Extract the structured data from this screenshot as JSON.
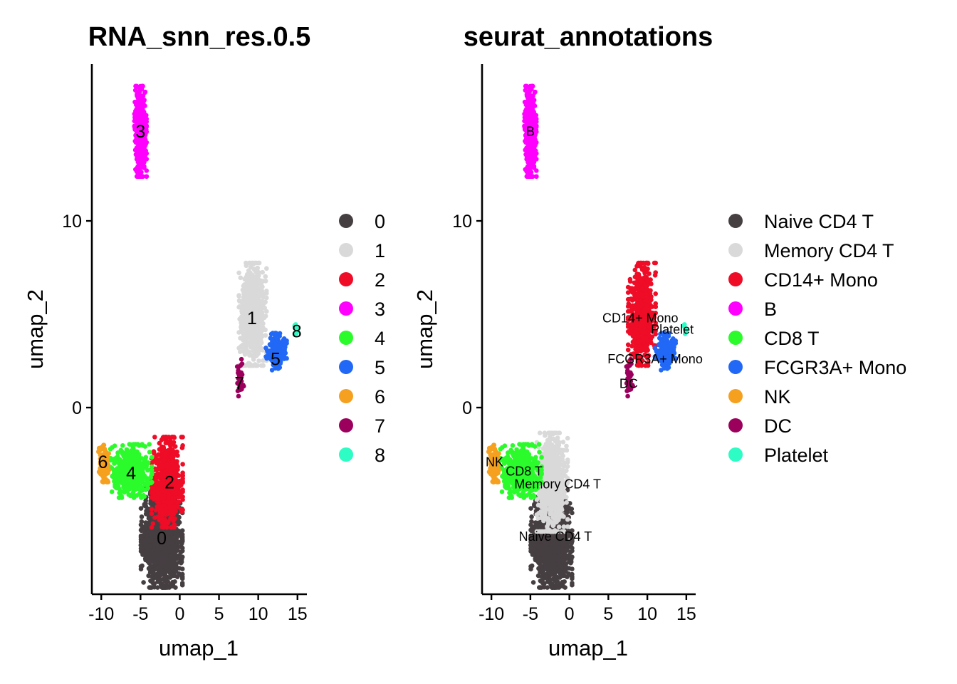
{
  "chart_data": [
    {
      "type": "scatter",
      "title": "RNA_snn_res.0.5",
      "xlabel": "umap_1",
      "ylabel": "umap_2",
      "xlim": [
        -11.2,
        16.2
      ],
      "ylim": [
        -10,
        18.4
      ],
      "xticks": [
        -10,
        -5,
        0,
        5,
        10,
        15
      ],
      "xtick_labels": [
        "-10",
        "-5",
        "0",
        "5",
        "10",
        "15"
      ],
      "yticks": [
        0,
        10
      ],
      "ytick_labels": [
        "0",
        "10"
      ],
      "grid": false,
      "legend_position": "right",
      "legend": [
        {
          "label": "0",
          "color": "#463F42"
        },
        {
          "label": "1",
          "color": "#D9D9D9"
        },
        {
          "label": "2",
          "color": "#EE0C27"
        },
        {
          "label": "3",
          "color": "#FF00FF"
        },
        {
          "label": "4",
          "color": "#2BFB2B"
        },
        {
          "label": "5",
          "color": "#2268F6"
        },
        {
          "label": "6",
          "color": "#F5A01F"
        },
        {
          "label": "7",
          "color": "#9C005D"
        },
        {
          "label": "8",
          "color": "#2DFCC4"
        }
      ],
      "label_size": 25,
      "clusters": [
        {
          "label": "0",
          "color": "#463F42",
          "center": [
            -2.3,
            -7.0
          ],
          "label_pos": [
            -2.3,
            -7.0
          ],
          "sx": 1.2,
          "sy": 1.2,
          "n": 1300
        },
        {
          "label": "1",
          "color": "#D9D9D9",
          "center": [
            9.3,
            5.0
          ],
          "label_pos": [
            9.2,
            4.8
          ],
          "sx": 0.8,
          "sy": 1.25,
          "n": 650
        },
        {
          "label": "2",
          "color": "#EE0C27",
          "center": [
            -1.6,
            -4.0
          ],
          "label_pos": [
            -1.3,
            -4.0
          ],
          "sx": 0.9,
          "sy": 1.1,
          "n": 700
        },
        {
          "label": "3",
          "color": "#FF00FF",
          "center": [
            -5.0,
            14.8
          ],
          "label_pos": [
            -5.0,
            14.8
          ],
          "sx": 0.35,
          "sy": 1.1,
          "n": 500
        },
        {
          "label": "4",
          "color": "#2BFB2B",
          "center": [
            -6.2,
            -3.4
          ],
          "label_pos": [
            -6.2,
            -3.5
          ],
          "sx": 1.2,
          "sy": 0.65,
          "n": 450
        },
        {
          "label": "5",
          "color": "#2268F6",
          "center": [
            12.3,
            3.0
          ],
          "label_pos": [
            12.2,
            2.6
          ],
          "sx": 0.6,
          "sy": 0.45,
          "n": 180
        },
        {
          "label": "6",
          "color": "#F5A01F",
          "center": [
            -9.7,
            -3.0
          ],
          "label_pos": [
            -9.8,
            -2.9
          ],
          "sx": 0.3,
          "sy": 0.45,
          "n": 140
        },
        {
          "label": "7",
          "color": "#9C005D",
          "center": [
            7.7,
            1.6
          ],
          "label_pos": [
            7.6,
            1.3
          ],
          "sx": 0.2,
          "sy": 0.45,
          "n": 30
        },
        {
          "label": "8",
          "color": "#2DFCC4",
          "center": [
            14.9,
            4.2
          ],
          "label_pos": [
            14.9,
            4.1
          ],
          "sx": 0.12,
          "sy": 0.12,
          "n": 8
        }
      ]
    },
    {
      "type": "scatter",
      "title": "seurat_annotations",
      "xlabel": "umap_1",
      "ylabel": "umap_2",
      "xlim": [
        -11.2,
        16.2
      ],
      "ylim": [
        -10,
        18.4
      ],
      "xticks": [
        -10,
        -5,
        0,
        5,
        10,
        15
      ],
      "xtick_labels": [
        "-10",
        "-5",
        "0",
        "5",
        "10",
        "15"
      ],
      "yticks": [
        0,
        10
      ],
      "ytick_labels": [
        "0",
        "10"
      ],
      "grid": false,
      "legend_position": "right",
      "legend": [
        {
          "label": "Naive CD4 T",
          "color": "#463F42"
        },
        {
          "label": "Memory CD4 T",
          "color": "#D9D9D9"
        },
        {
          "label": "CD14+ Mono",
          "color": "#EE0C27"
        },
        {
          "label": "B",
          "color": "#FF00FF"
        },
        {
          "label": "CD8 T",
          "color": "#2BFB2B"
        },
        {
          "label": "FCGR3A+ Mono",
          "color": "#2268F6"
        },
        {
          "label": "NK",
          "color": "#F5A01F"
        },
        {
          "label": "DC",
          "color": "#9C005D"
        },
        {
          "label": "Platelet",
          "color": "#2DFCC4"
        }
      ],
      "label_size": 18,
      "clusters": [
        {
          "label": "Naive CD4 T",
          "color": "#463F42",
          "center": [
            -2.3,
            -7.0
          ],
          "label_pos": [
            -1.8,
            -6.9
          ],
          "sx": 1.2,
          "sy": 1.2,
          "n": 1300
        },
        {
          "label": "Memory CD4 T",
          "color": "#D9D9D9",
          "center": [
            -2.2,
            -4.0
          ],
          "label_pos": [
            -1.5,
            -4.1
          ],
          "sx": 0.9,
          "sy": 1.2,
          "n": 700
        },
        {
          "label": "CD14+ Mono",
          "color": "#EE0C27",
          "center": [
            9.3,
            5.0
          ],
          "label_pos": [
            9.1,
            4.8
          ],
          "sx": 0.8,
          "sy": 1.25,
          "n": 650
        },
        {
          "label": "B",
          "color": "#FF00FF",
          "center": [
            -5.0,
            14.8
          ],
          "label_pos": [
            -5.0,
            14.8
          ],
          "sx": 0.35,
          "sy": 1.1,
          "n": 500
        },
        {
          "label": "CD8 T",
          "color": "#2BFB2B",
          "center": [
            -6.2,
            -3.4
          ],
          "label_pos": [
            -5.8,
            -3.4
          ],
          "sx": 1.2,
          "sy": 0.65,
          "n": 450
        },
        {
          "label": "FCGR3A+ Mono",
          "color": "#2268F6",
          "center": [
            12.3,
            3.0
          ],
          "label_pos": [
            11.0,
            2.6
          ],
          "sx": 0.6,
          "sy": 0.45,
          "n": 180
        },
        {
          "label": "NK",
          "color": "#F5A01F",
          "center": [
            -9.7,
            -3.0
          ],
          "label_pos": [
            -9.6,
            -2.9
          ],
          "sx": 0.3,
          "sy": 0.45,
          "n": 140
        },
        {
          "label": "DC",
          "color": "#9C005D",
          "center": [
            7.7,
            1.6
          ],
          "label_pos": [
            7.6,
            1.3
          ],
          "sx": 0.2,
          "sy": 0.45,
          "n": 30
        },
        {
          "label": "Platelet",
          "color": "#2DFCC4",
          "center": [
            14.9,
            4.2
          ],
          "label_pos": [
            13.2,
            4.2
          ],
          "sx": 0.12,
          "sy": 0.12,
          "n": 8
        }
      ]
    }
  ]
}
